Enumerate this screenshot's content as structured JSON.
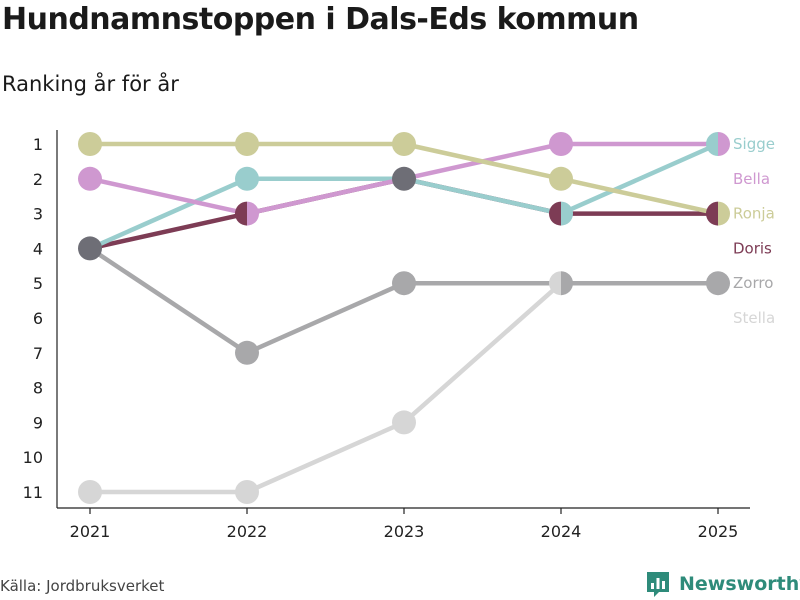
{
  "header": {
    "title": "Hundnamnstoppen i Dals-Eds kommun",
    "subtitle": "Ranking år för år"
  },
  "footer": {
    "source": "Källa: Jordbruksverket",
    "brand": "Newsworthy",
    "brand_icon": "bar-chart-logo-icon"
  },
  "chart_data": {
    "type": "line",
    "title": "Hundnamnstoppen i Dals-Eds kommun",
    "subtitle": "Ranking år för år",
    "xlabel": "",
    "ylabel": "",
    "x": [
      "2021",
      "2022",
      "2023",
      "2024",
      "2025"
    ],
    "y_ticks": [
      "1",
      "2",
      "3",
      "4",
      "5",
      "6",
      "7",
      "8",
      "9",
      "10",
      "11"
    ],
    "ylim": [
      1,
      11
    ],
    "y_reversed": true,
    "series": [
      {
        "name": "Stella",
        "color": "#d6d6d6",
        "values": [
          11,
          11,
          9,
          5,
          null
        ]
      },
      {
        "name": "Zorro",
        "color": "#a8a8aa",
        "values": [
          4,
          7,
          5,
          5,
          5
        ]
      },
      {
        "name": "Doris",
        "color": "#7d3c55",
        "values": [
          4,
          3,
          2,
          3,
          3
        ]
      },
      {
        "name": "Sigge",
        "color": "#99cdcd",
        "values": [
          4,
          2,
          2,
          3,
          1
        ]
      },
      {
        "name": "Bella",
        "color": "#cf98d0",
        "values": [
          2,
          3,
          2,
          1,
          1
        ]
      },
      {
        "name": "Ronja",
        "color": "#cccc99",
        "values": [
          1,
          1,
          1,
          2,
          3
        ]
      }
    ],
    "overlap_color": "#6e6e76",
    "legend": "right"
  }
}
